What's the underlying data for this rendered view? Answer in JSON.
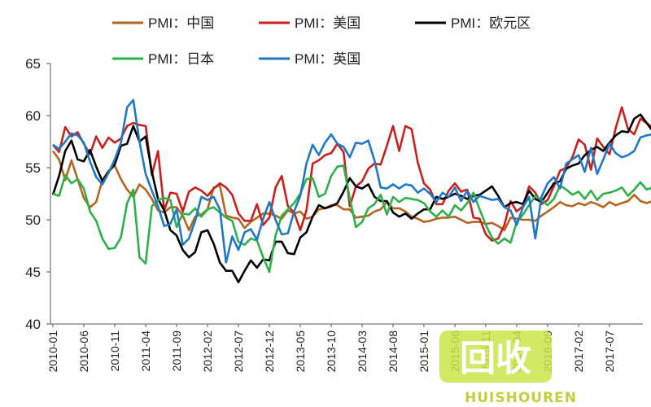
{
  "chart_data": {
    "type": "line",
    "title": "",
    "xlabel": "",
    "ylabel": "",
    "ylim": [
      40,
      65
    ],
    "yticks": [
      40,
      45,
      50,
      55,
      60,
      65
    ],
    "grid": false,
    "legend_position": "top",
    "x_start": "2010-01",
    "x_tick_labels": [
      "2010-01",
      "2010-06",
      "2010-11",
      "2011-04",
      "2011-09",
      "2012-02",
      "2012-07",
      "2012-12",
      "2013-05",
      "2013-10",
      "2014-03",
      "2014-08",
      "2015-01",
      "2015-06",
      "2015-11",
      "2016-04",
      "2016-09",
      "2017-02",
      "2017-07"
    ],
    "series": [
      {
        "name": "PMI：中国",
        "color": "#b5651d",
        "values": [
          56.6,
          55.8,
          53.8,
          55.7,
          53.9,
          52.1,
          51.2,
          51.7,
          53.8,
          54.7,
          55.2,
          53.9,
          52.9,
          52.2,
          53.4,
          52.9,
          52.0,
          50.9,
          50.7,
          51.2,
          51.2,
          50.4,
          49.0,
          50.3,
          50.5,
          51.0,
          53.1,
          53.3,
          50.4,
          50.2,
          50.1,
          49.2,
          49.8,
          50.2,
          50.6,
          50.6,
          50.4,
          50.1,
          50.9,
          50.6,
          50.8,
          50.1,
          50.3,
          51.0,
          51.1,
          51.4,
          51.4,
          51.0,
          51.0,
          50.2,
          50.3,
          50.4,
          50.8,
          51.0,
          51.7,
          51.1,
          51.1,
          50.8,
          50.3,
          50.1,
          49.8,
          49.9,
          50.1,
          50.2,
          50.2,
          50.3,
          50.0,
          49.7,
          49.8,
          49.8,
          49.6,
          49.7,
          49.4,
          49.0,
          50.2,
          50.1,
          50.0,
          50.0,
          49.9,
          50.4,
          50.8,
          51.2,
          51.7,
          51.4,
          51.3,
          51.6,
          51.4,
          51.7,
          51.5,
          51.2,
          51.7,
          51.4,
          51.6,
          51.8,
          52.4,
          51.8,
          51.6,
          51.8
        ]
      },
      {
        "name": "PMI：美国",
        "color": "#c8211e",
        "values": [
          57.2,
          56.5,
          58.9,
          58.0,
          58.4,
          57.3,
          56.3,
          58.0,
          56.9,
          57.9,
          57.4,
          57.8,
          59.0,
          59.3,
          59.1,
          59.0,
          54.3,
          56.6,
          50.9,
          52.6,
          52.5,
          50.8,
          52.7,
          53.1,
          52.8,
          52.3,
          53.0,
          53.5,
          53.1,
          52.4,
          50.6,
          49.9,
          49.9,
          51.5,
          49.5,
          50.2,
          53.1,
          54.2,
          51.3,
          50.7,
          49.0,
          50.9,
          55.4,
          55.7,
          56.2,
          56.4,
          57.3,
          56.5,
          51.3,
          53.2,
          53.7,
          54.9,
          55.4,
          55.3,
          57.1,
          59.0,
          56.6,
          59.0,
          58.7,
          55.5,
          53.5,
          52.9,
          51.5,
          51.5,
          52.8,
          53.5,
          52.7,
          52.9,
          50.2,
          50.1,
          48.6,
          48.0,
          48.2,
          49.5,
          51.8,
          50.8,
          51.3,
          53.2,
          52.6,
          51.5,
          51.9,
          53.2,
          54.7,
          55.0,
          56.0,
          57.7,
          57.2,
          54.8,
          57.8,
          57.0,
          56.3,
          58.8,
          60.8,
          58.7,
          58.2,
          59.7,
          59.3,
          58.8
        ]
      },
      {
        "name": "PMI：欧元区",
        "color": "#000000",
        "values": [
          52.4,
          54.2,
          56.6,
          57.6,
          55.8,
          55.6,
          56.7,
          55.1,
          53.7,
          54.6,
          55.3,
          57.1,
          57.3,
          59.0,
          57.5,
          58.0,
          54.6,
          52.0,
          50.9,
          49.0,
          48.5,
          47.1,
          46.4,
          46.9,
          48.8,
          49.0,
          47.7,
          45.9,
          45.1,
          45.1,
          44.0,
          45.1,
          46.1,
          45.4,
          46.2,
          46.1,
          47.9,
          47.9,
          46.8,
          46.7,
          48.3,
          48.8,
          50.3,
          51.4,
          51.1,
          51.3,
          51.6,
          52.7,
          54.0,
          53.2,
          53.0,
          53.4,
          52.2,
          51.8,
          51.8,
          50.7,
          50.3,
          50.6,
          50.1,
          50.6,
          51.0,
          51.0,
          52.2,
          52.0,
          52.2,
          52.5,
          52.3,
          52.0,
          52.3,
          52.4,
          52.8,
          53.2,
          52.3,
          51.2,
          51.6,
          51.7,
          51.5,
          52.8,
          52.0,
          51.7,
          52.6,
          53.5,
          53.7,
          54.9,
          55.2,
          55.4,
          56.2,
          56.7,
          57.0,
          56.6,
          57.4,
          58.1,
          58.5,
          58.4,
          59.7,
          60.1,
          59.3,
          58.5
        ]
      },
      {
        "name": "PMI：日本",
        "color": "#2db24a",
        "values": [
          52.5,
          52.3,
          54.3,
          53.5,
          53.9,
          53.0,
          50.8,
          49.9,
          48.2,
          47.2,
          47.3,
          48.3,
          51.6,
          52.9,
          46.4,
          45.8,
          51.3,
          51.9,
          52.1,
          51.9,
          49.3,
          50.6,
          50.5,
          51.1,
          50.3,
          51.0,
          51.2,
          50.7,
          50.2,
          49.9,
          47.9,
          47.6,
          48.2,
          48.0,
          46.4,
          45.0,
          48.5,
          50.4,
          51.0,
          51.6,
          52.5,
          53.9,
          54.0,
          52.2,
          52.5,
          54.2,
          55.1,
          55.2,
          52.1,
          49.3,
          49.8,
          51.1,
          51.5,
          52.4,
          50.5,
          52.2,
          51.7,
          52.1,
          52.0,
          51.9,
          51.6,
          50.8,
          50.3,
          50.9,
          50.3,
          51.4,
          50.9,
          51.6,
          52.6,
          51.0,
          49.5,
          48.3,
          47.7,
          48.2,
          47.8,
          49.8,
          50.5,
          51.4,
          52.3,
          51.9,
          51.4,
          52.0,
          53.3,
          52.9,
          52.4,
          52.7,
          52.0,
          52.8,
          51.9,
          52.5,
          52.6,
          52.8,
          53.1,
          52.3,
          52.9,
          53.6,
          52.9,
          53.1
        ]
      },
      {
        "name": "PMI：英国",
        "color": "#1f78c8",
        "values": [
          57.2,
          56.8,
          57.5,
          58.3,
          58.1,
          57.4,
          55.6,
          54.1,
          53.4,
          54.5,
          55.8,
          57.4,
          60.8,
          61.5,
          57.5,
          54.4,
          52.8,
          51.3,
          49.4,
          49.6,
          51.0,
          47.6,
          48.2,
          49.9,
          52.2,
          51.9,
          52.2,
          51.0,
          45.9,
          48.4,
          47.1,
          48.8,
          49.1,
          48.1,
          50.1,
          51.7,
          50.0,
          48.6,
          48.7,
          50.8,
          52.3,
          55.4,
          57.2,
          56.2,
          57.4,
          58.2,
          57.3,
          57.0,
          56.0,
          57.4,
          57.3,
          57.6,
          55.7,
          53.1,
          53.0,
          53.4,
          53.0,
          53.4,
          53.3,
          52.6,
          53.0,
          52.5,
          51.7,
          52.6,
          52.2,
          53.1,
          51.8,
          52.8,
          51.7,
          52.3,
          52.1,
          51.9,
          52.0,
          51.2,
          50.9,
          49.5,
          51.2,
          52.2,
          48.2,
          52.2,
          53.5,
          54.1,
          53.0,
          55.4,
          55.8,
          56.2,
          54.6,
          56.9,
          54.4,
          55.8,
          57.3,
          56.4,
          56.0,
          56.2,
          56.6,
          57.9,
          58.1,
          58.2
        ]
      }
    ]
  },
  "watermark": {
    "main_text": "回收",
    "sub_text": "HUISHOUREN"
  }
}
